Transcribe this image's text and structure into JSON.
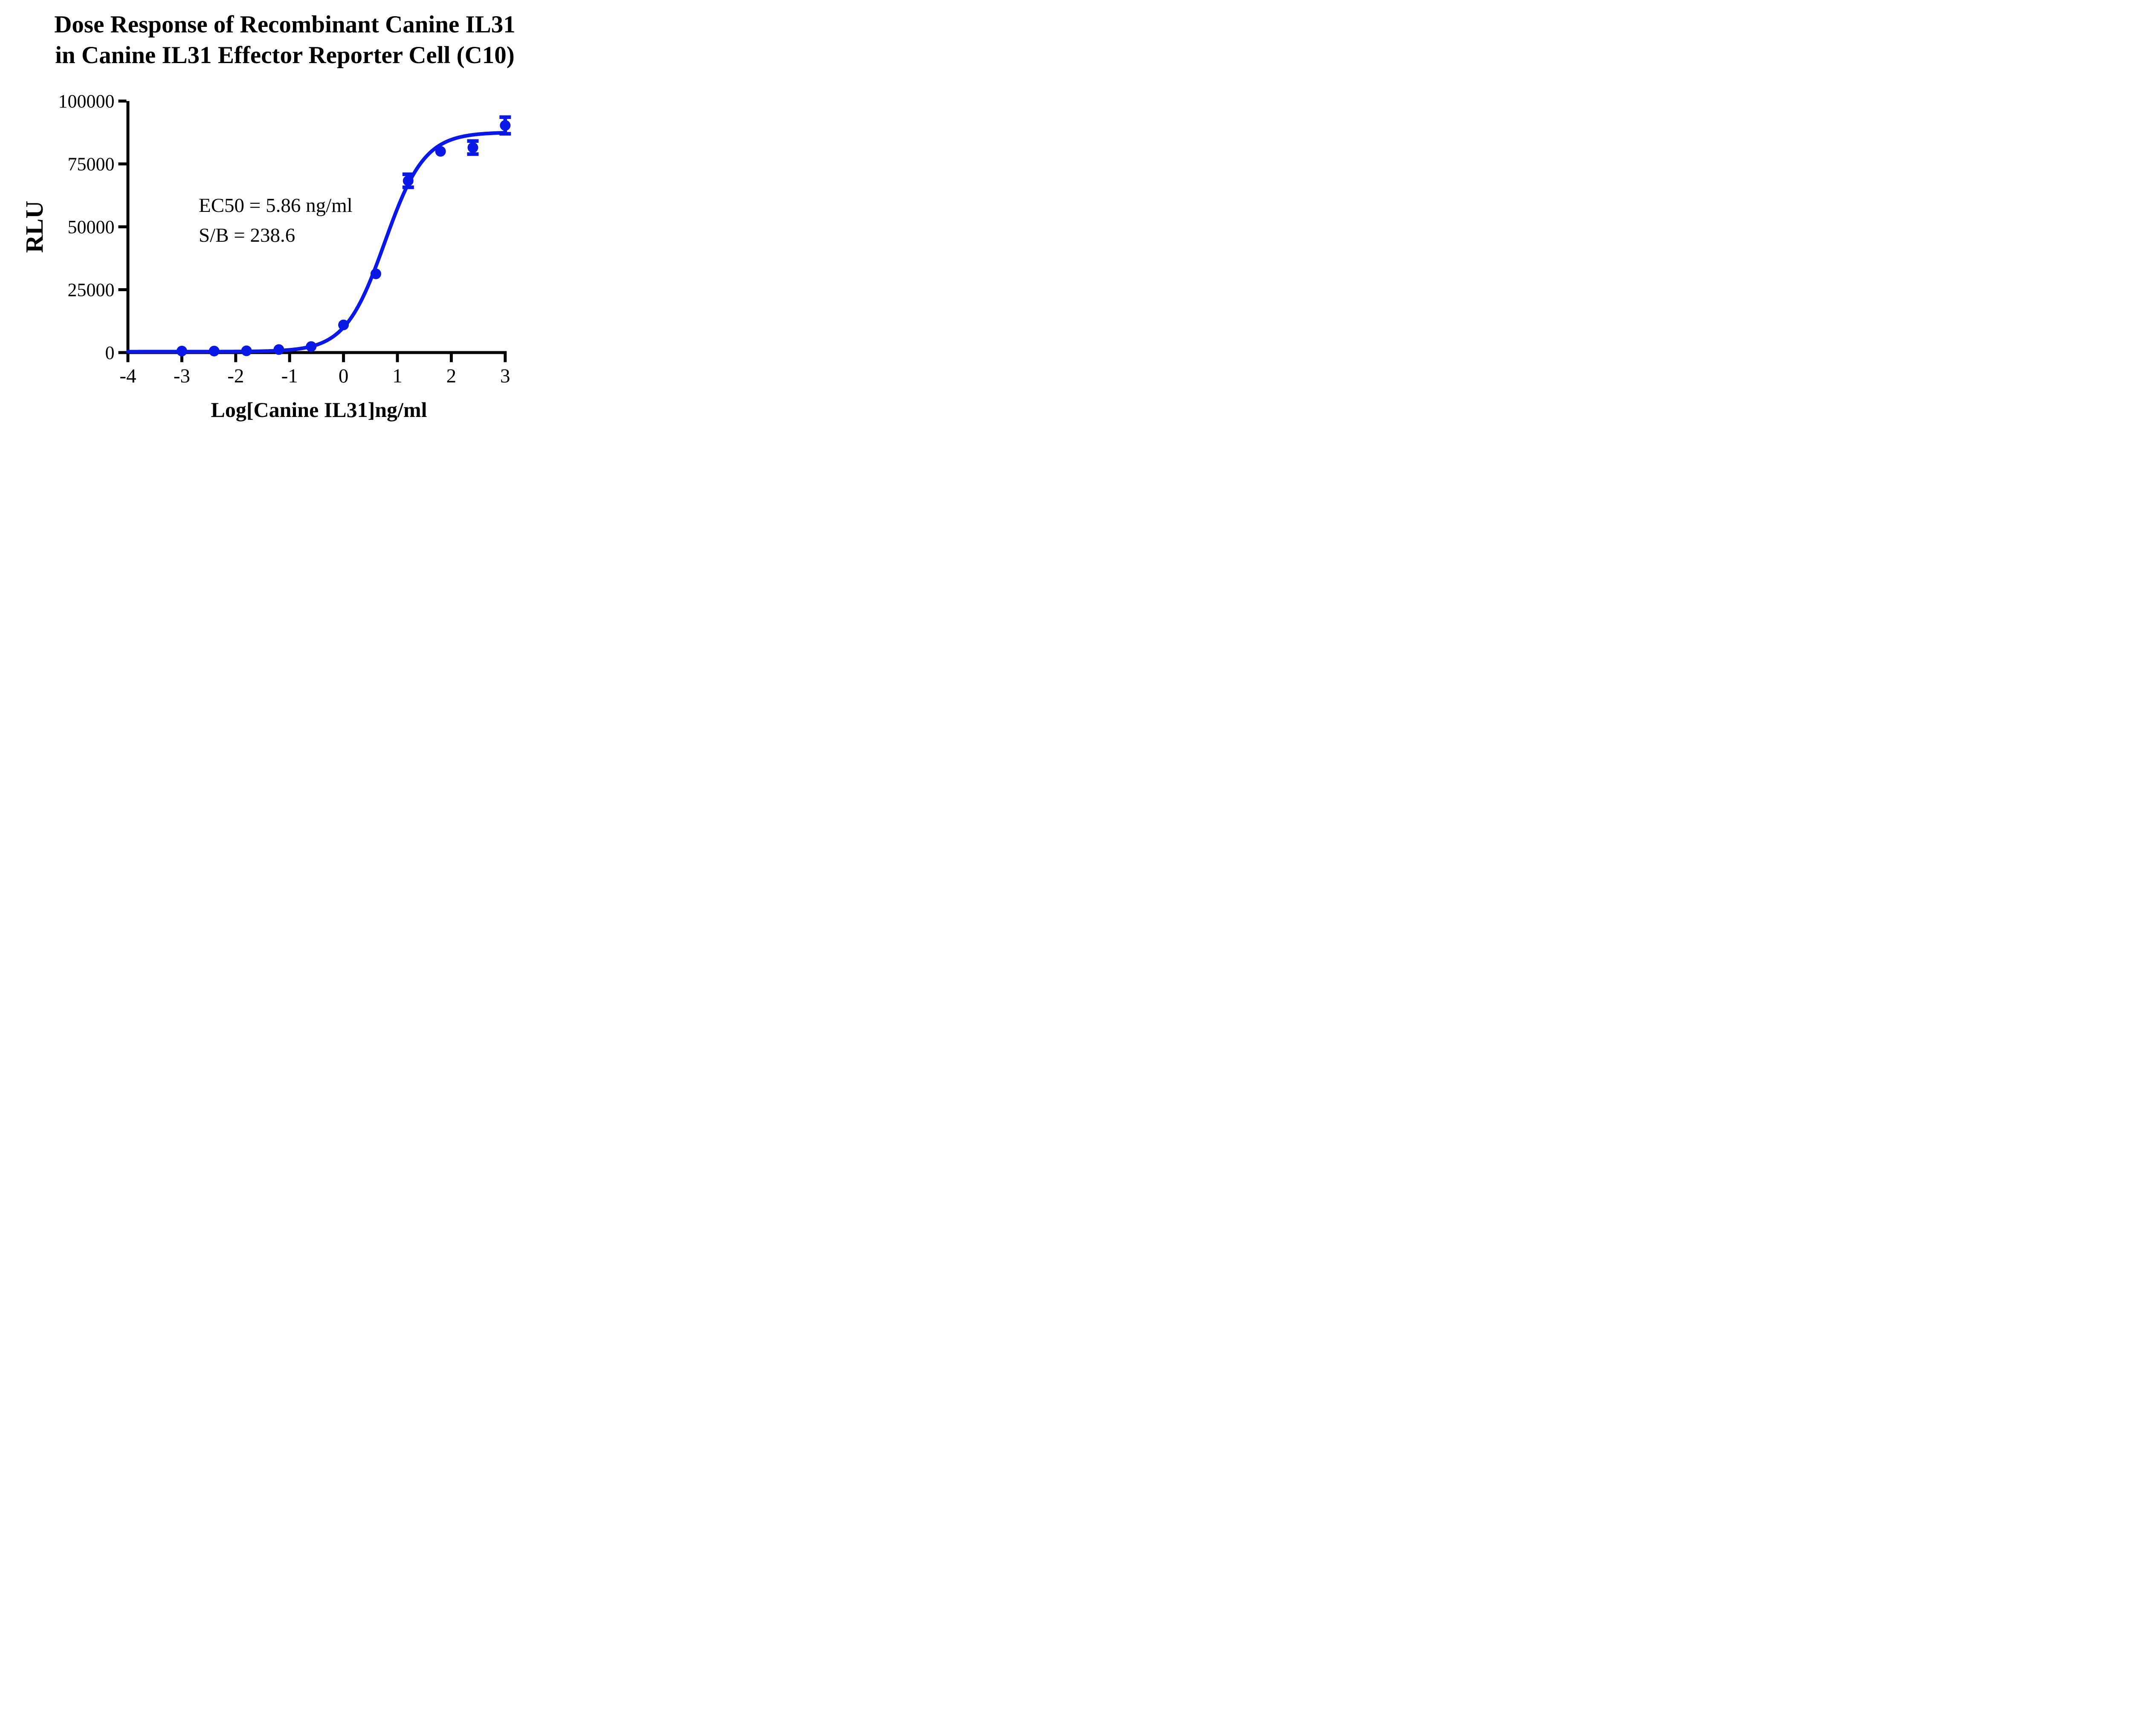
{
  "title": {
    "line1": "Dose Response of Recombinant Canine IL31",
    "line2": "in Canine IL31 Effector Reporter Cell (C10)"
  },
  "annotation": {
    "ec50_line": "EC50 = 5.86 ng/ml",
    "sb_line": "S/B = 238.6"
  },
  "axes": {
    "x_title": "Log[Canine IL31]ng/ml",
    "y_title": "RLU"
  },
  "colors": {
    "curve": "#0a18e6",
    "axis": "#000000",
    "text": "#000000",
    "background": "#ffffff"
  },
  "chart_data": {
    "type": "scatter",
    "title": "Dose Response of Recombinant Canine IL31 in Canine IL31 Effector Reporter Cell (C10)",
    "xlabel": "Log[Canine IL31]ng/ml",
    "ylabel": "RLU",
    "xlim": [
      -4,
      3
    ],
    "ylim": [
      0,
      100000
    ],
    "x_ticks": [
      "-4",
      "-3",
      "-2",
      "-1",
      "0",
      "1",
      "2",
      "3"
    ],
    "x_tick_values": [
      -4,
      -3,
      -2,
      -1,
      0,
      1,
      2,
      3
    ],
    "y_ticks": [
      "0",
      "25000",
      "50000",
      "75000",
      "100000"
    ],
    "y_tick_values": [
      0,
      25000,
      50000,
      75000,
      100000
    ],
    "grid": false,
    "legend": "none",
    "series": [
      {
        "name": "Canine IL31",
        "marker": "circle",
        "points": [
          {
            "x": -3.0,
            "y": 600,
            "err": 0
          },
          {
            "x": -2.4,
            "y": 600,
            "err": 0
          },
          {
            "x": -1.8,
            "y": 700,
            "err": 0
          },
          {
            "x": -1.2,
            "y": 1200,
            "err": 0
          },
          {
            "x": -0.6,
            "y": 2400,
            "err": 0
          },
          {
            "x": 0.0,
            "y": 11000,
            "err": 0
          },
          {
            "x": 0.6,
            "y": 31300,
            "err": 0
          },
          {
            "x": 1.2,
            "y": 68300,
            "err": 2600
          },
          {
            "x": 1.8,
            "y": 80000,
            "err": 0
          },
          {
            "x": 2.4,
            "y": 81500,
            "err": 2600
          },
          {
            "x": 3.0,
            "y": 90300,
            "err": 3300
          }
        ]
      }
    ],
    "fit_curve": {
      "model": "4PL",
      "bottom": 370,
      "top": 87600,
      "log_ec50": 0.768,
      "hill": 1.18
    },
    "ec50_ng_ml": 5.86,
    "signal_to_background": 238.6
  }
}
